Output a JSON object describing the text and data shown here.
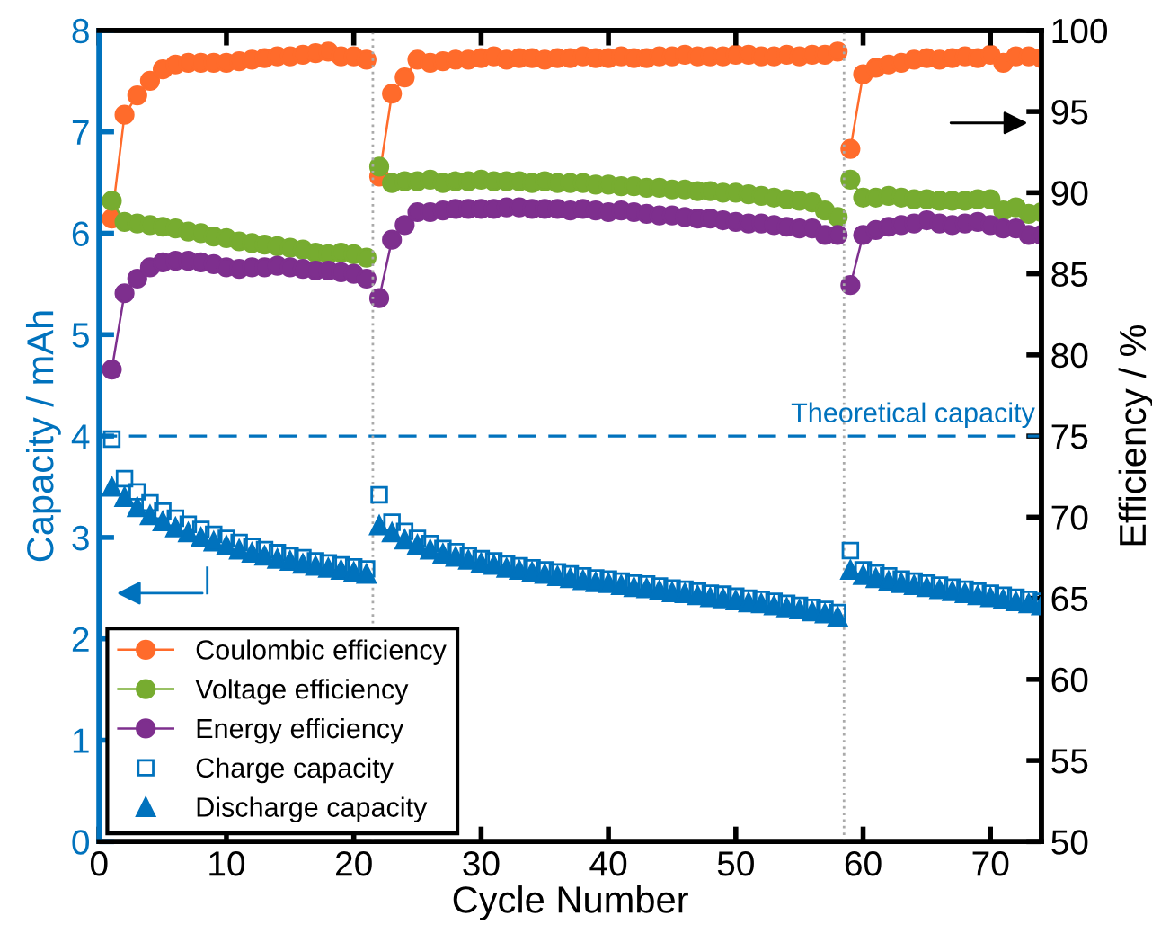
{
  "chart_data": {
    "type": "line",
    "xlabel": "Cycle Number",
    "ylabel": "Capacity / mAh",
    "y2label": "Efficiency / %",
    "x": [
      1,
      2,
      3,
      4,
      5,
      6,
      7,
      8,
      9,
      10,
      11,
      12,
      13,
      14,
      15,
      16,
      17,
      18,
      19,
      20,
      21,
      21.5,
      22,
      23,
      24,
      25,
      26,
      27,
      28,
      29,
      30,
      31,
      32,
      33,
      34,
      35,
      36,
      37,
      38,
      39,
      40,
      41,
      42,
      43,
      44,
      45,
      46,
      47,
      48,
      49,
      50,
      51,
      52,
      53,
      54,
      55,
      56,
      57,
      58,
      58.5,
      59,
      60,
      61,
      62,
      63,
      64,
      65,
      66,
      67,
      68,
      69,
      70,
      71,
      72,
      73,
      74
    ],
    "series": [
      {
        "name": "Coulombic efficiency",
        "axis": "y2",
        "marker": "circle",
        "color": "#ff6b2b",
        "values": [
          88.4,
          94.8,
          96.0,
          96.9,
          97.6,
          97.9,
          98.0,
          98.0,
          98.0,
          98.0,
          98.1,
          98.2,
          98.3,
          98.4,
          98.4,
          98.5,
          98.6,
          98.7,
          98.4,
          98.4,
          98.2,
          null,
          91.0,
          96.1,
          97.1,
          98.2,
          98.0,
          98.1,
          98.2,
          98.2,
          98.3,
          98.4,
          98.2,
          98.3,
          98.3,
          98.2,
          98.3,
          98.3,
          98.4,
          98.3,
          98.3,
          98.4,
          98.3,
          98.3,
          98.4,
          98.4,
          98.5,
          98.4,
          98.4,
          98.4,
          98.5,
          98.5,
          98.4,
          98.4,
          98.5,
          98.4,
          98.5,
          98.5,
          98.7,
          null,
          92.7,
          97.3,
          97.7,
          97.9,
          98.0,
          98.2,
          98.3,
          98.2,
          98.3,
          98.4,
          98.3,
          98.5,
          98.0,
          98.4,
          98.4,
          98.3
        ]
      },
      {
        "name": "Voltage efficiency",
        "axis": "y2",
        "marker": "circle",
        "color": "#77ac30",
        "values": [
          89.5,
          88.2,
          88.1,
          88.0,
          87.9,
          87.8,
          87.6,
          87.5,
          87.3,
          87.2,
          87.0,
          86.9,
          86.8,
          86.7,
          86.6,
          86.5,
          86.3,
          86.2,
          86.3,
          86.2,
          86.0,
          null,
          91.6,
          90.6,
          90.7,
          90.7,
          90.8,
          90.6,
          90.7,
          90.7,
          90.8,
          90.7,
          90.7,
          90.7,
          90.6,
          90.7,
          90.6,
          90.6,
          90.6,
          90.5,
          90.5,
          90.4,
          90.4,
          90.3,
          90.3,
          90.2,
          90.2,
          90.1,
          90.1,
          90.0,
          90.0,
          89.9,
          89.8,
          89.7,
          89.6,
          89.5,
          89.4,
          88.9,
          88.5,
          null,
          90.8,
          89.7,
          89.7,
          89.8,
          89.7,
          89.6,
          89.6,
          89.5,
          89.5,
          89.5,
          89.6,
          89.6,
          88.9,
          89.1,
          88.7,
          88.8
        ]
      },
      {
        "name": "Energy efficiency",
        "axis": "y2",
        "marker": "circle",
        "color": "#7e2f8e",
        "values": [
          79.1,
          83.8,
          84.7,
          85.4,
          85.7,
          85.8,
          85.8,
          85.7,
          85.6,
          85.4,
          85.3,
          85.4,
          85.4,
          85.5,
          85.4,
          85.3,
          85.2,
          85.2,
          85.1,
          85.0,
          84.7,
          null,
          83.5,
          87.1,
          88.0,
          88.8,
          88.8,
          88.9,
          89.0,
          89.0,
          89.0,
          89.0,
          89.1,
          89.1,
          89.0,
          89.0,
          89.0,
          88.9,
          89.0,
          88.9,
          88.8,
          88.9,
          88.8,
          88.7,
          88.6,
          88.6,
          88.5,
          88.4,
          88.4,
          88.3,
          88.2,
          88.1,
          88.1,
          88.0,
          87.9,
          87.8,
          87.8,
          87.4,
          87.4,
          null,
          84.3,
          87.4,
          87.7,
          87.9,
          88.0,
          88.1,
          88.3,
          88.1,
          88.0,
          88.1,
          88.2,
          88.0,
          87.8,
          87.8,
          87.4,
          87.4
        ]
      },
      {
        "name": "Charge capacity",
        "type": "scatter",
        "marker": "square",
        "color": "#0072bd",
        "values": [
          3.97,
          3.58,
          3.45,
          3.34,
          3.26,
          3.19,
          3.13,
          3.08,
          3.03,
          2.99,
          2.95,
          2.91,
          2.88,
          2.85,
          2.82,
          2.8,
          2.77,
          2.75,
          2.73,
          2.71,
          2.69,
          null,
          3.42,
          3.15,
          3.06,
          2.99,
          2.94,
          2.89,
          2.86,
          2.82,
          2.79,
          2.77,
          2.74,
          2.72,
          2.7,
          2.68,
          2.66,
          2.64,
          2.62,
          2.6,
          2.59,
          2.57,
          2.55,
          2.54,
          2.52,
          2.5,
          2.49,
          2.47,
          2.45,
          2.44,
          2.42,
          2.4,
          2.39,
          2.37,
          2.35,
          2.33,
          2.31,
          2.29,
          2.26,
          null,
          2.87,
          2.68,
          2.65,
          2.62,
          2.59,
          2.57,
          2.55,
          2.53,
          2.51,
          2.49,
          2.47,
          2.45,
          2.43,
          2.41,
          2.39,
          2.37
        ]
      },
      {
        "name": "Discharge capacity",
        "type": "scatter",
        "marker": "triangle",
        "color": "#0072bd",
        "values": [
          3.5,
          3.4,
          3.3,
          3.22,
          3.16,
          3.1,
          3.05,
          3.0,
          2.96,
          2.92,
          2.88,
          2.85,
          2.82,
          2.79,
          2.77,
          2.74,
          2.72,
          2.7,
          2.68,
          2.66,
          2.64,
          null,
          3.12,
          3.05,
          2.98,
          2.93,
          2.88,
          2.84,
          2.81,
          2.78,
          2.75,
          2.73,
          2.7,
          2.68,
          2.66,
          2.64,
          2.62,
          2.6,
          2.58,
          2.56,
          2.55,
          2.53,
          2.51,
          2.5,
          2.48,
          2.46,
          2.45,
          2.43,
          2.41,
          2.4,
          2.38,
          2.36,
          2.35,
          2.33,
          2.31,
          2.29,
          2.27,
          2.25,
          2.22,
          null,
          2.68,
          2.63,
          2.6,
          2.57,
          2.55,
          2.53,
          2.51,
          2.49,
          2.47,
          2.45,
          2.43,
          2.41,
          2.39,
          2.37,
          2.35,
          2.33
        ]
      }
    ],
    "xlim": [
      0,
      74
    ],
    "xticks": [
      0,
      10,
      20,
      30,
      40,
      50,
      60,
      70
    ],
    "ylim": [
      0,
      8
    ],
    "yticks": [
      0,
      1,
      2,
      3,
      4,
      5,
      6,
      7,
      8
    ],
    "y2lim": [
      50,
      100
    ],
    "y2ticks": [
      50,
      55,
      60,
      65,
      70,
      75,
      80,
      85,
      90,
      95,
      100
    ],
    "ref_lines": [
      {
        "axis": "y",
        "value": 4,
        "label": "Theoretical capacity",
        "color": "#0072bd",
        "line_style": "dashed"
      },
      {
        "axis": "x",
        "value": 21.5,
        "color": "#aaaaaa",
        "line_style": "dotted"
      },
      {
        "axis": "x",
        "value": 58.5,
        "color": "#aaaaaa",
        "line_style": "dotted"
      }
    ],
    "legend": "bottom left",
    "grid": false
  }
}
